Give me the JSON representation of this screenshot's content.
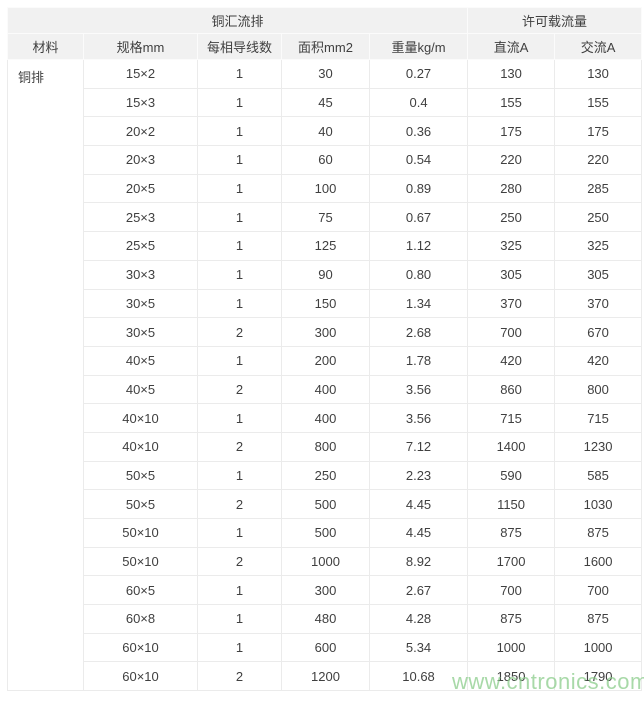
{
  "table": {
    "group_headers": [
      "铜汇流排",
      "许可载流量"
    ],
    "columns": [
      "材料",
      "规格mm",
      "每相导线数",
      "面积mm2",
      "重量kg/m",
      "直流A",
      "交流A"
    ],
    "material": "铜排",
    "rows": [
      [
        "15×2",
        "1",
        "30",
        "0.27",
        "130",
        "130"
      ],
      [
        "15×3",
        "1",
        "45",
        "0.4",
        "155",
        "155"
      ],
      [
        "20×2",
        "1",
        "40",
        "0.36",
        "175",
        "175"
      ],
      [
        "20×3",
        "1",
        "60",
        "0.54",
        "220",
        "220"
      ],
      [
        "20×5",
        "1",
        "100",
        "0.89",
        "280",
        "285"
      ],
      [
        "25×3",
        "1",
        "75",
        "0.67",
        "250",
        "250"
      ],
      [
        "25×5",
        "1",
        "125",
        "1.12",
        "325",
        "325"
      ],
      [
        "30×3",
        "1",
        "90",
        "0.80",
        "305",
        "305"
      ],
      [
        "30×5",
        "1",
        "150",
        "1.34",
        "370",
        "370"
      ],
      [
        "30×5",
        "2",
        "300",
        "2.68",
        "700",
        "670"
      ],
      [
        "40×5",
        "1",
        "200",
        "1.78",
        "420",
        "420"
      ],
      [
        "40×5",
        "2",
        "400",
        "3.56",
        "860",
        "800"
      ],
      [
        "40×10",
        "1",
        "400",
        "3.56",
        "715",
        "715"
      ],
      [
        "40×10",
        "2",
        "800",
        "7.12",
        "1400",
        "1230"
      ],
      [
        "50×5",
        "1",
        "250",
        "2.23",
        "590",
        "585"
      ],
      [
        "50×5",
        "2",
        "500",
        "4.45",
        "1150",
        "1030"
      ],
      [
        "50×10",
        "1",
        "500",
        "4.45",
        "875",
        "875"
      ],
      [
        "50×10",
        "2",
        "1000",
        "8.92",
        "1700",
        "1600"
      ],
      [
        "60×5",
        "1",
        "300",
        "2.67",
        "700",
        "700"
      ],
      [
        "60×8",
        "1",
        "480",
        "4.28",
        "875",
        "875"
      ],
      [
        "60×10",
        "1",
        "600",
        "5.34",
        "1000",
        "1000"
      ],
      [
        "60×10",
        "2",
        "1200",
        "10.68",
        "1850",
        "1790"
      ]
    ]
  },
  "watermark": {
    "text": "www.cntronics.com",
    "color": "#86cb86"
  },
  "colors": {
    "header_bg": "#f1f1f1",
    "cell_border": "#ebebeb",
    "text": "#404040",
    "background": "#ffffff"
  }
}
